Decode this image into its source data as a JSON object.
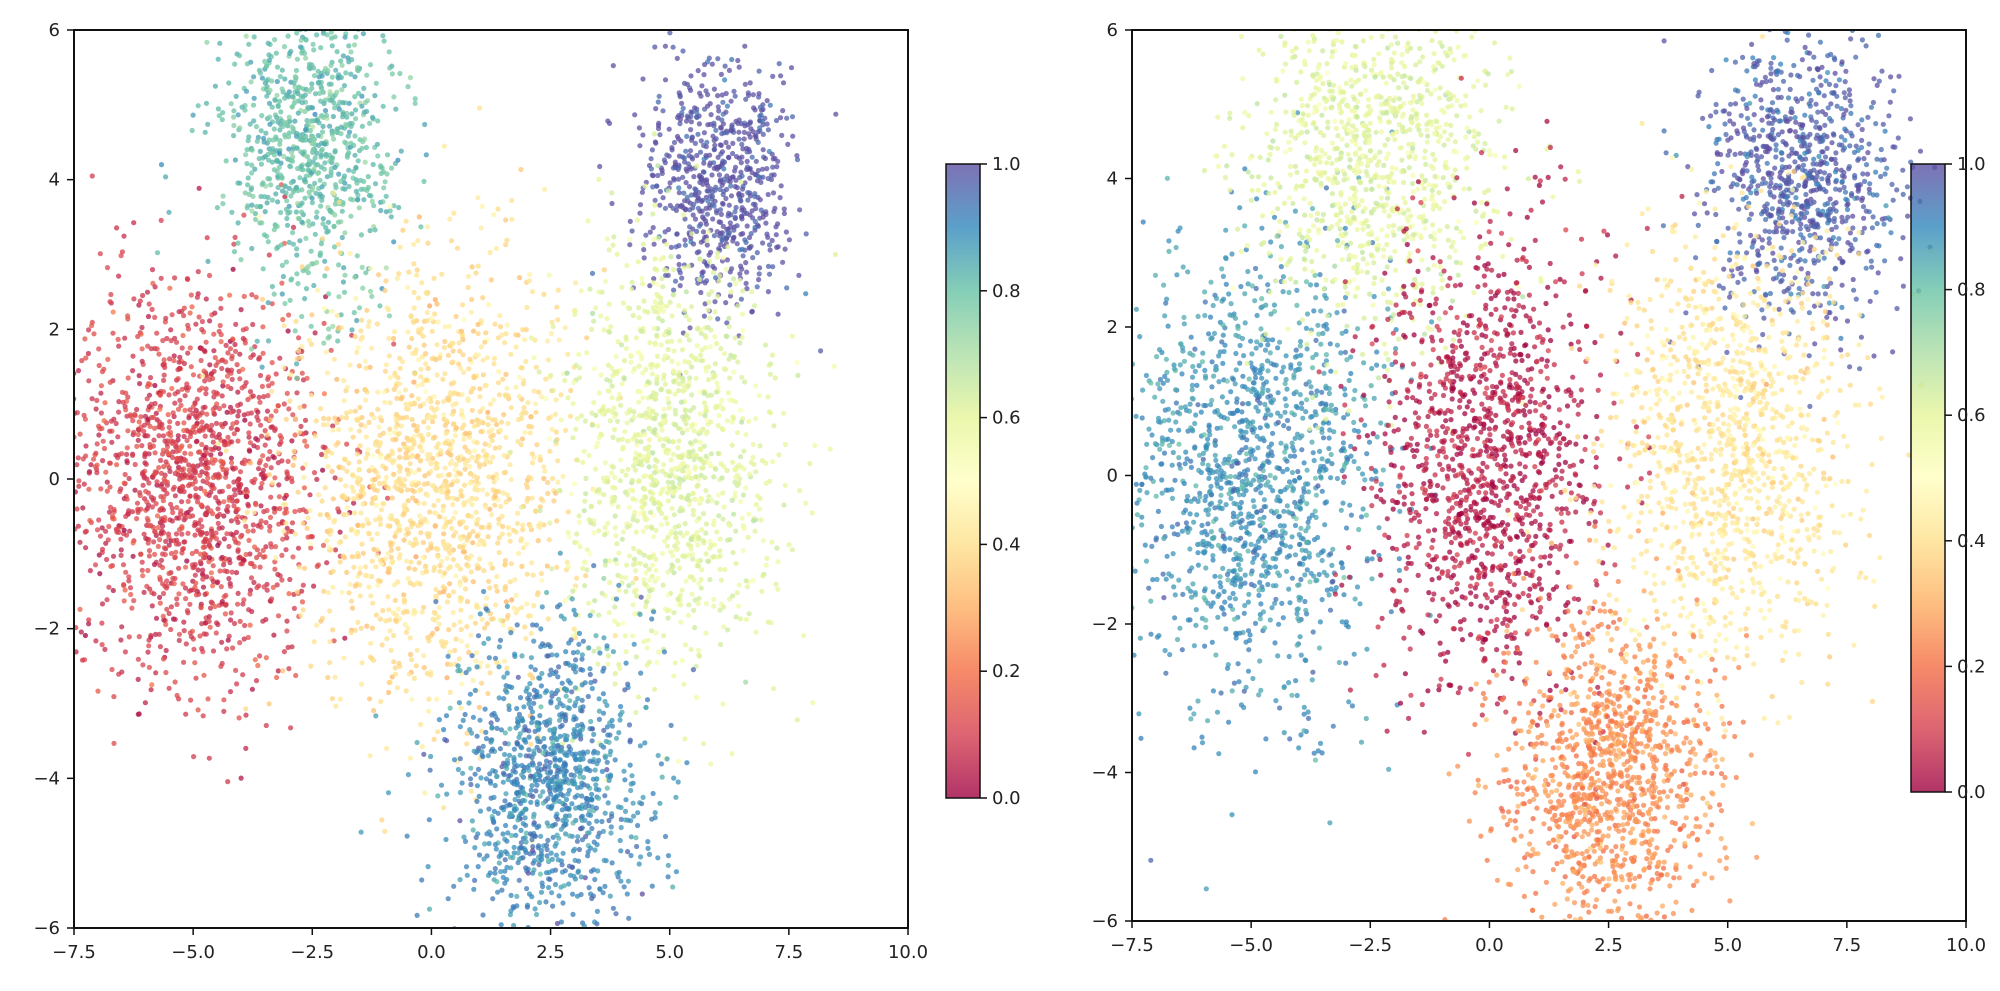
{
  "chart_data": [
    {
      "type": "scatter",
      "title": "",
      "xlabel": "",
      "ylabel": "",
      "xlim": [
        -7.5,
        10.0
      ],
      "ylim": [
        -6,
        6
      ],
      "xticks": [
        "−7.5",
        "−5.0",
        "−2.5",
        "0.0",
        "2.5",
        "5.0",
        "7.5",
        "10.0"
      ],
      "yticks": [
        "−6",
        "−4",
        "−2",
        "0",
        "2",
        "4",
        "6"
      ],
      "grid": false,
      "colormap": "Spectral",
      "point_alpha": 0.75,
      "clusters": [
        {
          "center_x": -5.0,
          "center_y": 0.0,
          "spread_x": 1.4,
          "spread_y": 1.35,
          "color_value": 0.1,
          "count": 1600
        },
        {
          "center_x": -2.5,
          "center_y": 4.5,
          "spread_x": 0.9,
          "spread_y": 1.0,
          "color_value": 0.8,
          "count": 900
        },
        {
          "center_x": 0.0,
          "center_y": 0.0,
          "spread_x": 1.4,
          "spread_y": 1.5,
          "color_value": 0.4,
          "count": 1500
        },
        {
          "center_x": 6.0,
          "center_y": 4.0,
          "spread_x": 0.8,
          "spread_y": 0.8,
          "color_value": 1.0,
          "count": 700
        },
        {
          "center_x": 5.0,
          "center_y": 0.3,
          "spread_x": 1.1,
          "spread_y": 1.4,
          "color_value": 0.6,
          "count": 1200
        },
        {
          "center_x": 2.5,
          "center_y": -4.0,
          "spread_x": 1.0,
          "spread_y": 1.0,
          "color_value": 0.9,
          "count": 1100
        }
      ],
      "colorbar": {
        "range": [
          0.0,
          1.0
        ],
        "ticks": [
          "0.0",
          "0.2",
          "0.4",
          "0.6",
          "0.8",
          "1.0"
        ]
      }
    },
    {
      "type": "scatter",
      "title": "",
      "xlabel": "",
      "ylabel": "",
      "xlim": [
        -7.5,
        10.0
      ],
      "ylim": [
        -6,
        6
      ],
      "xticks": [
        "−7.5",
        "−5.0",
        "−2.5",
        "0.0",
        "2.5",
        "5.0",
        "7.5",
        "10.0"
      ],
      "yticks": [
        "−6",
        "−4",
        "−2",
        "0",
        "2",
        "4",
        "6"
      ],
      "grid": false,
      "colormap": "Spectral",
      "point_alpha": 0.75,
      "clusters": [
        {
          "center_x": -5.0,
          "center_y": 0.0,
          "spread_x": 1.4,
          "spread_y": 1.5,
          "color_value": 0.88,
          "count": 1400
        },
        {
          "center_x": -2.5,
          "center_y": 4.5,
          "spread_x": 1.3,
          "spread_y": 1.3,
          "color_value": 0.6,
          "count": 1100
        },
        {
          "center_x": 0.0,
          "center_y": 0.2,
          "spread_x": 1.2,
          "spread_y": 1.5,
          "color_value": 0.04,
          "count": 1300
        },
        {
          "center_x": 6.5,
          "center_y": 4.0,
          "spread_x": 1.0,
          "spread_y": 1.0,
          "color_value": 0.97,
          "count": 900
        },
        {
          "center_x": 5.0,
          "center_y": 0.3,
          "spread_x": 1.3,
          "spread_y": 1.5,
          "color_value": 0.42,
          "count": 1200
        },
        {
          "center_x": 2.5,
          "center_y": -4.0,
          "spread_x": 1.1,
          "spread_y": 1.1,
          "color_value": 0.25,
          "count": 1200
        }
      ],
      "colorbar": {
        "range": [
          0.0,
          1.0
        ],
        "ticks": [
          "0.0",
          "0.2",
          "0.4",
          "0.6",
          "0.8",
          "1.0"
        ]
      }
    }
  ]
}
